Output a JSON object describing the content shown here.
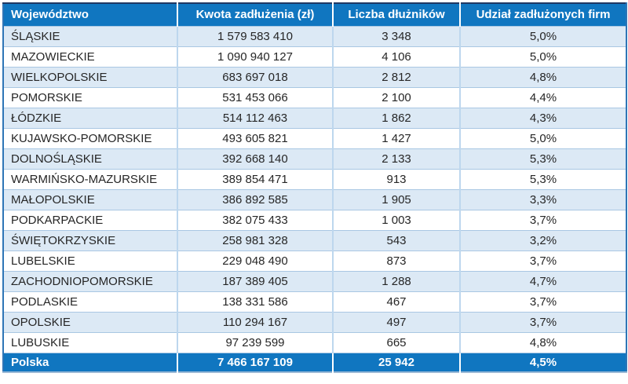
{
  "colors": {
    "header_blue": "#1076c0",
    "row_alt_blue": "#dce9f5",
    "row_border": "#a9c7e3",
    "column_border": "#bdd7ee",
    "top_border": "#1f3864",
    "side_border": "#2e75b6",
    "bottom_border": "#9cb9d6",
    "text_dark": "#262626"
  },
  "table": {
    "columns": [
      {
        "key": "region",
        "label": "Województwo"
      },
      {
        "key": "debt",
        "label": "Kwota zadłużenia (zł)"
      },
      {
        "key": "debtors",
        "label": "Liczba dłużników"
      },
      {
        "key": "share",
        "label": "Udział zadłużonych firm"
      }
    ],
    "rows": [
      {
        "region": "ŚLĄSKIE",
        "debt": "1 579 583 410",
        "debtors": "3 348",
        "share": "5,0%"
      },
      {
        "region": "MAZOWIECKIE",
        "debt": "1 090 940 127",
        "debtors": "4 106",
        "share": "5,0%"
      },
      {
        "region": "WIELKOPOLSKIE",
        "debt": "683 697 018",
        "debtors": "2 812",
        "share": "4,8%"
      },
      {
        "region": "POMORSKIE",
        "debt": "531 453 066",
        "debtors": "2 100",
        "share": "4,4%"
      },
      {
        "region": "ŁÓDZKIE",
        "debt": "514 112 463",
        "debtors": "1 862",
        "share": "4,3%"
      },
      {
        "region": "KUJAWSKO-POMORSKIE",
        "debt": "493 605 821",
        "debtors": "1 427",
        "share": "5,0%"
      },
      {
        "region": "DOLNOŚLĄSKIE",
        "debt": "392 668 140",
        "debtors": "2 133",
        "share": "5,3%"
      },
      {
        "region": "WARMIŃSKO-MAZURSKIE",
        "debt": "389 854 471",
        "debtors": "913",
        "share": "5,3%"
      },
      {
        "region": "MAŁOPOLSKIE",
        "debt": "386 892 585",
        "debtors": "1 905",
        "share": "3,3%"
      },
      {
        "region": "PODKARPACKIE",
        "debt": "382 075 433",
        "debtors": "1 003",
        "share": "3,7%"
      },
      {
        "region": "ŚWIĘTOKRZYSKIE",
        "debt": "258 981 328",
        "debtors": "543",
        "share": "3,2%"
      },
      {
        "region": "LUBELSKIE",
        "debt": "229 048 490",
        "debtors": "873",
        "share": "3,7%"
      },
      {
        "region": "ZACHODNIOPOMORSKIE",
        "debt": "187 389 405",
        "debtors": "1 288",
        "share": "4,7%"
      },
      {
        "region": "PODLASKIE",
        "debt": "138 331 586",
        "debtors": "467",
        "share": "3,7%"
      },
      {
        "region": "OPOLSKIE",
        "debt": "110 294 167",
        "debtors": "497",
        "share": "3,7%"
      },
      {
        "region": "LUBUSKIE",
        "debt": "97 239 599",
        "debtors": "665",
        "share": "4,8%"
      }
    ],
    "footer": {
      "region": "Polska",
      "debt": "7 466 167 109",
      "debtors": "25 942",
      "share": "4,5%"
    }
  }
}
